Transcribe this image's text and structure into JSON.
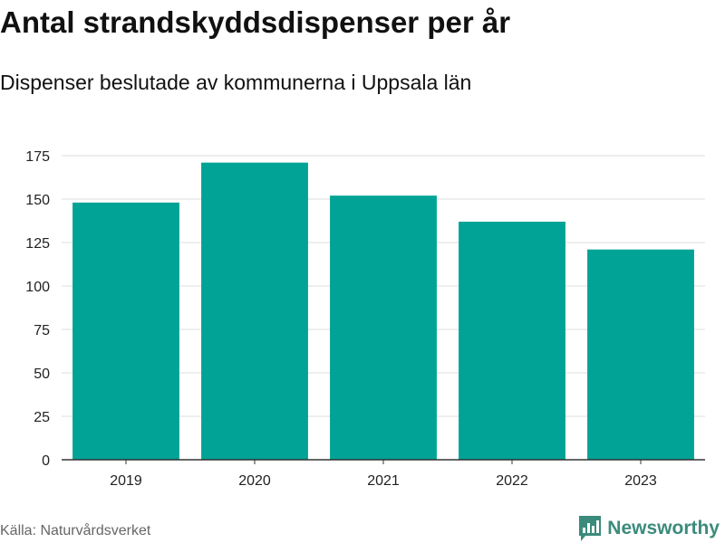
{
  "chart_data": {
    "type": "bar",
    "title": "Antal strandskyddsdispenser per år",
    "subtitle": "Dispenser beslutade av kommunerna i Uppsala län",
    "categories": [
      "2019",
      "2020",
      "2021",
      "2022",
      "2023"
    ],
    "values": [
      148,
      171,
      152,
      137,
      121
    ],
    "xlabel": "",
    "ylabel": "",
    "ylim": [
      0,
      175
    ],
    "yticks": [
      0,
      25,
      50,
      75,
      100,
      125,
      150,
      175
    ],
    "grid": true,
    "bar_color": "#00a396"
  },
  "footer": {
    "source": "Källa: Naturvårdsverket",
    "brand": "Newsworthy",
    "brand_icon": "bar-chart-flag-icon",
    "brand_color": "#3b8b7c"
  }
}
